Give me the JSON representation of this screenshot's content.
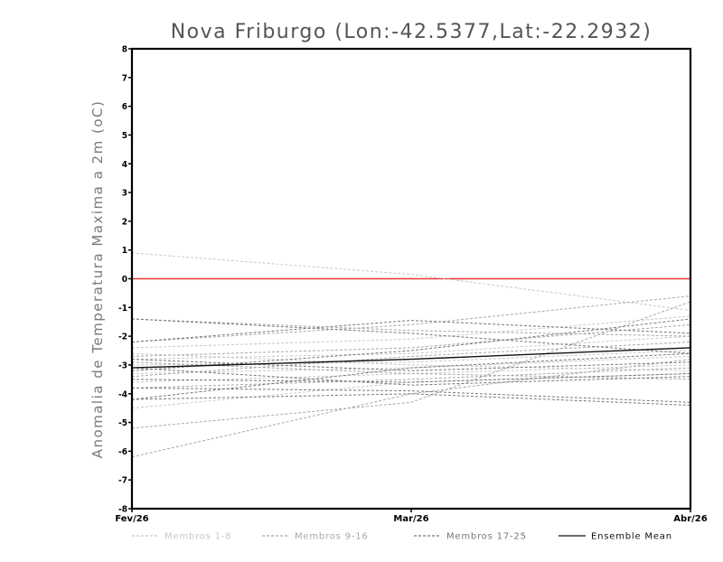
{
  "chart_data": {
    "type": "line",
    "title": "Nova Friburgo (Lon:-42.5377,Lat:-22.2932)",
    "ylabel": "Anomalia de Temperatura Maxima a 2m (oC)",
    "xlabel": "",
    "categories": [
      "Fev/26",
      "Mar/26",
      "Abr/26"
    ],
    "ylim": [
      -8,
      8
    ],
    "yticks": [
      "-8",
      "-7",
      "-6",
      "-5",
      "-4",
      "-3",
      "-2",
      "-1",
      "0",
      "1",
      "2",
      "3",
      "4",
      "5",
      "6",
      "7",
      "8"
    ],
    "zero_line": {
      "value": 0,
      "color": "#ee3333"
    },
    "groups": [
      {
        "name": "Membros 1-8",
        "color": "#c8c8c8",
        "dash": "3,2"
      },
      {
        "name": "Membros 9-16",
        "color": "#a8a8a8",
        "dash": "3,2"
      },
      {
        "name": "Membros 17-25",
        "color": "#787878",
        "dash": "3,2"
      },
      {
        "name": "Ensemble Mean",
        "color": "#111111",
        "dash": ""
      }
    ],
    "series": [
      {
        "group": 0,
        "values": [
          0.9,
          0.15,
          -1.1
        ]
      },
      {
        "group": 0,
        "values": [
          -2.4,
          -2.1,
          -1.3
        ]
      },
      {
        "group": 0,
        "values": [
          -2.8,
          -2.6,
          -2.0
        ]
      },
      {
        "group": 0,
        "values": [
          -3.0,
          -2.9,
          -2.5
        ]
      },
      {
        "group": 0,
        "values": [
          -3.3,
          -3.1,
          -2.7
        ]
      },
      {
        "group": 0,
        "values": [
          -3.6,
          -3.3,
          -3.0
        ]
      },
      {
        "group": 0,
        "values": [
          -4.5,
          -3.6,
          -3.3
        ]
      },
      {
        "group": 0,
        "values": [
          -2.6,
          -3.0,
          -3.2
        ]
      },
      {
        "group": 1,
        "values": [
          -1.4,
          -1.8,
          -2.0
        ]
      },
      {
        "group": 1,
        "values": [
          -2.2,
          -1.6,
          -0.6
        ]
      },
      {
        "group": 1,
        "values": [
          -2.7,
          -2.4,
          -1.6
        ]
      },
      {
        "group": 1,
        "values": [
          -5.2,
          -4.3,
          -0.8
        ]
      },
      {
        "group": 1,
        "values": [
          -6.2,
          -4.0,
          -2.8
        ]
      },
      {
        "group": 1,
        "values": [
          -3.4,
          -2.7,
          -2.2
        ]
      },
      {
        "group": 1,
        "values": [
          -2.9,
          -3.3,
          -3.5
        ]
      },
      {
        "group": 1,
        "values": [
          -3.8,
          -3.5,
          -3.1
        ]
      },
      {
        "group": 2,
        "values": [
          -1.4,
          -1.9,
          -2.6
        ]
      },
      {
        "group": 2,
        "values": [
          -2.2,
          -1.45,
          -1.9
        ]
      },
      {
        "group": 2,
        "values": [
          -2.8,
          -3.2,
          -2.9
        ]
      },
      {
        "group": 2,
        "values": [
          -3.1,
          -3.7,
          -3.4
        ]
      },
      {
        "group": 2,
        "values": [
          -3.2,
          -2.5,
          -1.4
        ]
      },
      {
        "group": 2,
        "values": [
          -3.5,
          -3.6,
          -3.3
        ]
      },
      {
        "group": 2,
        "values": [
          -3.8,
          -3.9,
          -4.3
        ]
      },
      {
        "group": 2,
        "values": [
          -4.2,
          -4.0,
          -4.4
        ]
      },
      {
        "group": 2,
        "values": [
          -4.2,
          -3.1,
          -2.6
        ]
      },
      {
        "group": 3,
        "values": [
          -3.1,
          -2.8,
          -2.4
        ]
      }
    ]
  }
}
